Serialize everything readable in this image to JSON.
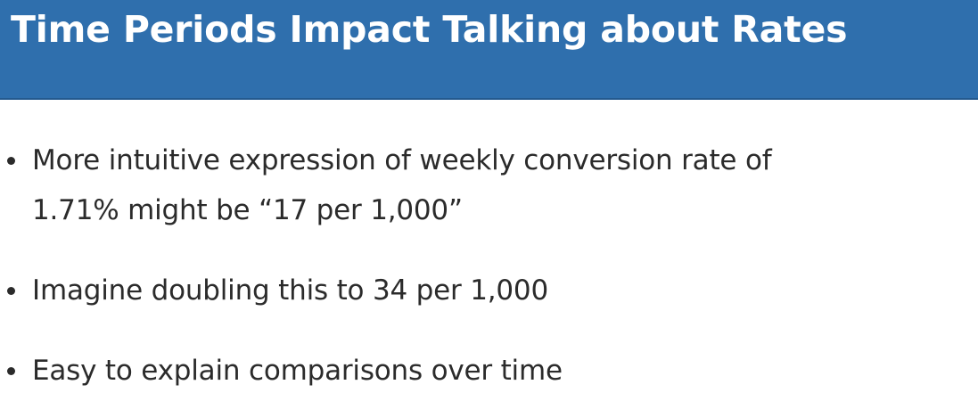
{
  "slide": {
    "title": "Time Periods Impact Talking about Rates",
    "bullets": [
      {
        "line1": "More intuitive expression of weekly conversion rate of",
        "line2": "1.71% might be “17 per 1,000”"
      },
      {
        "line1": "Imagine doubling this to 34 per 1,000"
      },
      {
        "line1": "Easy to explain comparisons over time"
      }
    ]
  },
  "colors": {
    "header_background": "#2f6fad",
    "title_text": "#ffffff",
    "body_text": "#2b2b2b"
  }
}
